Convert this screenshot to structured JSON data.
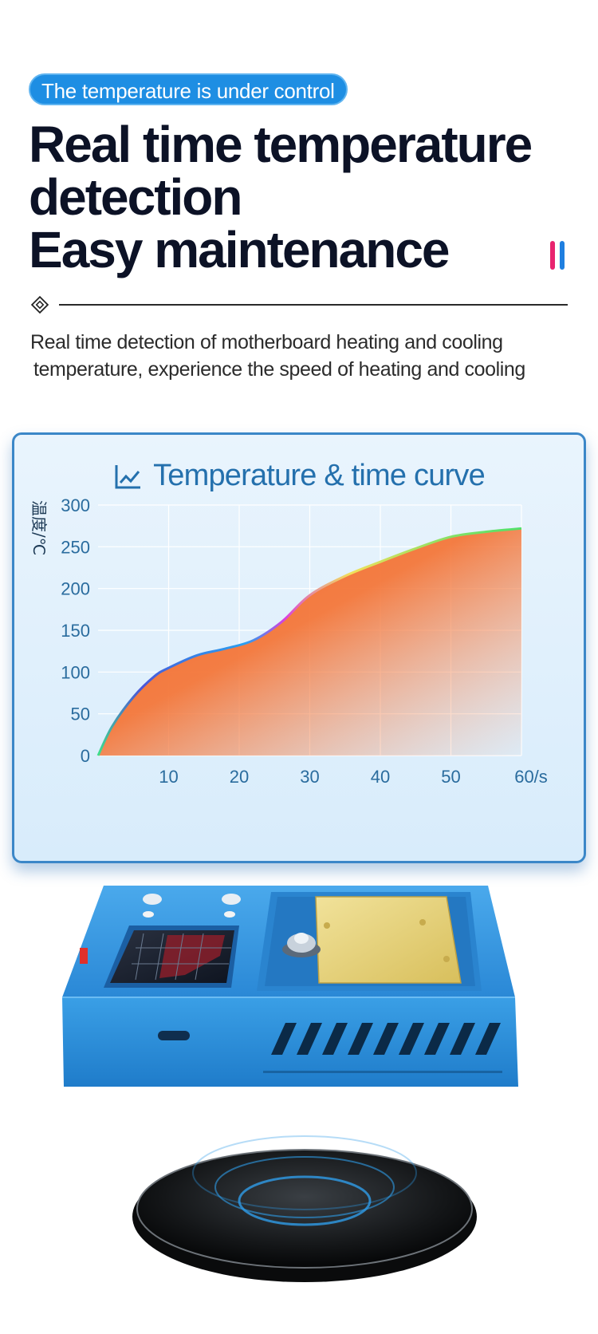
{
  "header": {
    "pill": "The temperature is under control",
    "headline": [
      "Real time temperature",
      "detection",
      "Easy maintenance"
    ],
    "description": [
      "Real time detection of motherboard heating and cooling",
      "temperature, experience the speed of heating and cooling"
    ],
    "accent_colors": [
      "#e8246f",
      "#1f7fe0"
    ]
  },
  "chart_data": {
    "type": "area",
    "title": "Temperature & time curve",
    "ylabel": "温度/℃",
    "x": [
      0,
      2,
      5,
      8,
      10,
      14,
      18,
      22,
      26,
      30,
      35,
      40,
      45,
      50,
      55,
      60
    ],
    "y": [
      0,
      35,
      70,
      95,
      105,
      120,
      128,
      138,
      160,
      192,
      215,
      232,
      248,
      262,
      268,
      272
    ],
    "xlim": [
      0,
      60
    ],
    "ylim": [
      0,
      300
    ],
    "xticks": [
      "10",
      "20",
      "30",
      "40",
      "50",
      "60/s"
    ],
    "yticks": [
      "0",
      "50",
      "100",
      "150",
      "200",
      "250",
      "300"
    ],
    "grid": true,
    "colors": {
      "fill": "#f26a2e",
      "axis_text": "#2a6c9e",
      "title": "#2470ad"
    }
  },
  "product": {
    "name": "heating platform with screen",
    "colors": {
      "body": "#2f97e0",
      "plate": "#e7d27a",
      "base": "#1a1a1a"
    }
  }
}
